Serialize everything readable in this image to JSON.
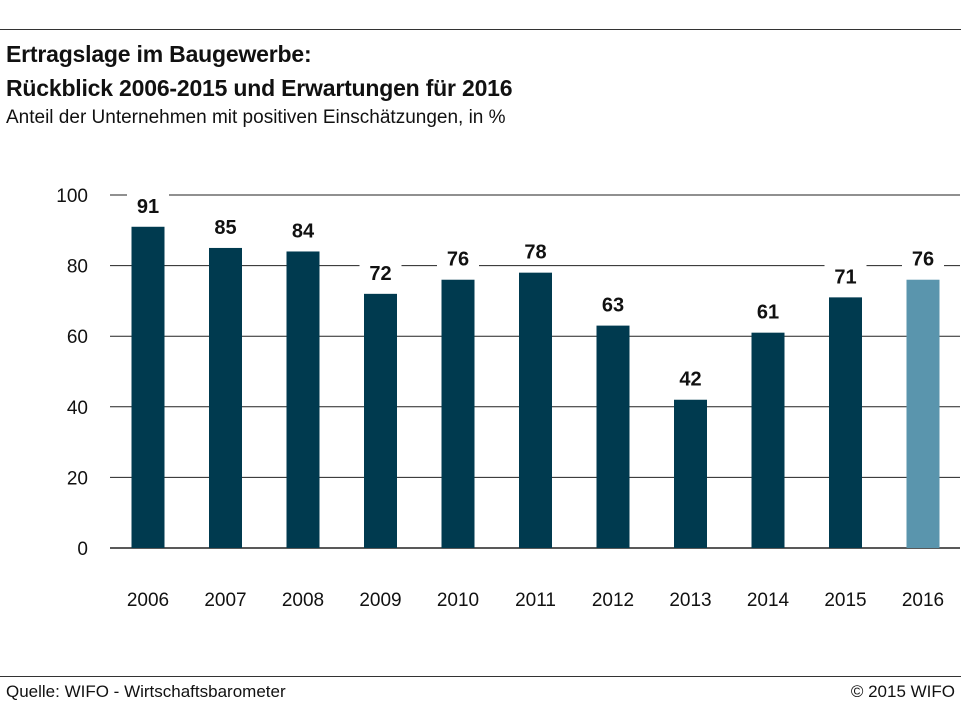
{
  "header": {
    "title_line1": "Ertragslage im Baugewerbe:",
    "title_line2": "Rückblick 2006-2015 und Erwartungen für 2016",
    "subtitle": "Anteil der Unternehmen mit positiven Einschätzungen, in %"
  },
  "footer": {
    "source": "Quelle: WIFO - Wirtschaftsbarometer",
    "copyright": "© 2015 WIFO"
  },
  "colors": {
    "bar": "#003a4f",
    "bar_highlight": "#5a95ad",
    "grid": "#222222"
  },
  "chart_data": {
    "type": "bar",
    "categories": [
      "2006",
      "2007",
      "2008",
      "2009",
      "2010",
      "2011",
      "2012",
      "2013",
      "2014",
      "2015",
      "2016"
    ],
    "values": [
      91,
      85,
      84,
      72,
      76,
      78,
      63,
      42,
      61,
      71,
      76
    ],
    "highlight_categories": [
      "2016"
    ],
    "ylim": [
      0,
      100
    ],
    "yticks": [
      0,
      20,
      40,
      60,
      80,
      100
    ],
    "grid": true,
    "data_labels": true
  }
}
